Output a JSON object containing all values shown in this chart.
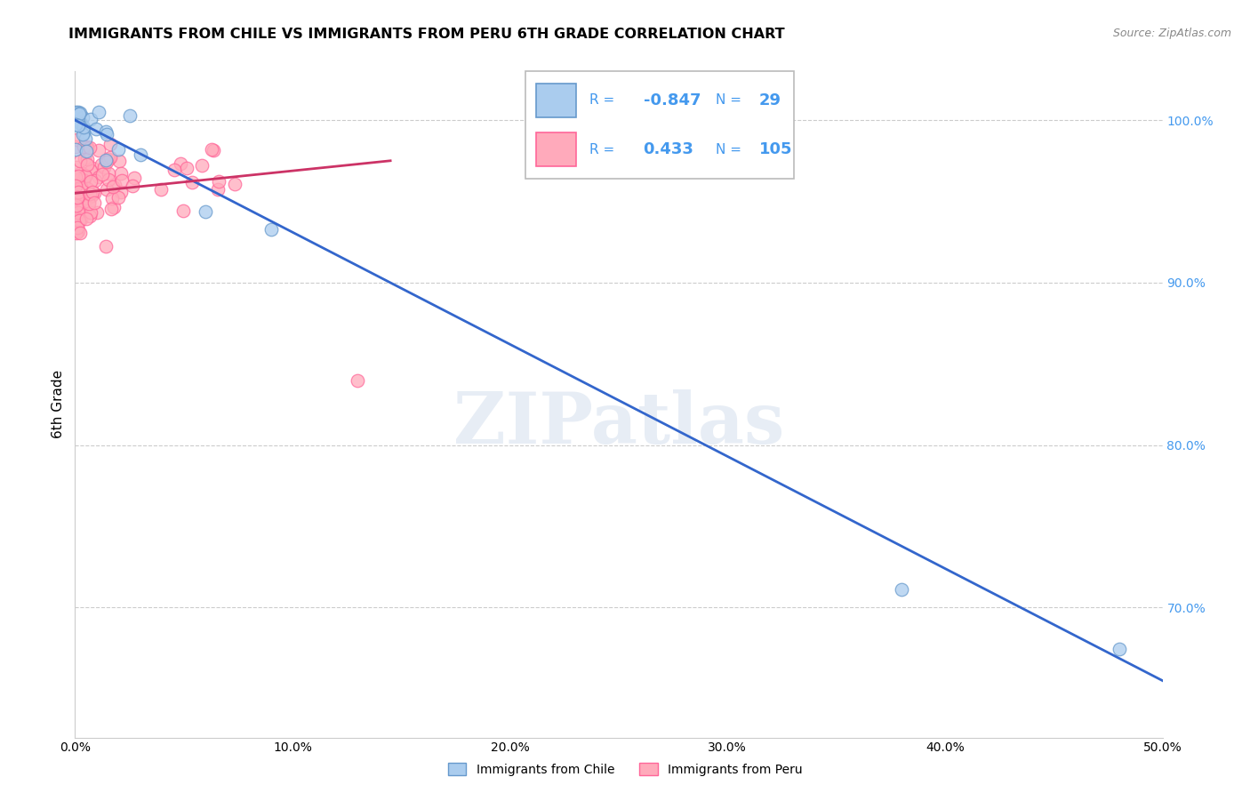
{
  "title": "IMMIGRANTS FROM CHILE VS IMMIGRANTS FROM PERU 6TH GRADE CORRELATION CHART",
  "source": "Source: ZipAtlas.com",
  "ylabel": "6th Grade",
  "chile_color": "#6699CC",
  "chile_fill": "#AACCEE",
  "peru_color": "#FF6699",
  "peru_fill": "#FFAABB",
  "chile_R": -0.847,
  "chile_N": 29,
  "peru_R": 0.433,
  "peru_N": 105,
  "trend_line_color_chile": "#3366CC",
  "trend_line_color_peru": "#CC3366",
  "watermark": "ZIPatlas",
  "legend_chile": "Immigrants from Chile",
  "legend_peru": "Immigrants from Peru",
  "xlim": [
    0.0,
    0.5
  ],
  "ylim": [
    0.62,
    1.03
  ],
  "yticks": [
    0.7,
    0.8,
    0.9,
    1.0
  ],
  "ytick_labels": [
    "70.0%",
    "80.0%",
    "90.0%",
    "100.0%"
  ],
  "xticks": [
    0.0,
    0.1,
    0.2,
    0.3,
    0.4,
    0.5
  ],
  "xtick_labels": [
    "0.0%",
    "10.0%",
    "20.0%",
    "30.0%",
    "40.0%",
    "50.0%"
  ],
  "chile_trend_x": [
    0.0,
    0.5
  ],
  "chile_trend_y": [
    1.0,
    0.655
  ],
  "peru_trend_x": [
    0.0,
    0.145
  ],
  "peru_trend_y": [
    0.955,
    0.975
  ],
  "right_tick_color": "#4499EE",
  "grid_color": "#CCCCCC"
}
